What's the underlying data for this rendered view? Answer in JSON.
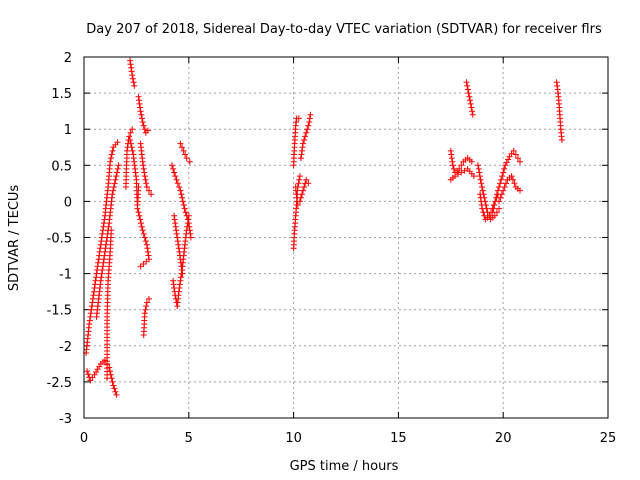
{
  "chart_data": {
    "type": "scatter",
    "title": "Day 207 of 2018, Sidereal Day-to-day VTEC variation (SDTVAR) for receiver flrs",
    "xlabel": "GPS time / hours",
    "ylabel": "SDTVAR / TECUs",
    "xlim": [
      0,
      25
    ],
    "ylim": [
      -3,
      2
    ],
    "xticks": [
      "0",
      "5",
      "10",
      "15",
      "20",
      "25"
    ],
    "yticks": [
      "-3",
      "-2.5",
      "-2",
      "-1.5",
      "-1",
      "-0.5",
      "0",
      "0.5",
      "1",
      "1.5",
      "2"
    ],
    "grid": true,
    "marker": "plus",
    "color": "#ff0000",
    "series": [
      {
        "name": "SDTVAR",
        "segments": [
          [
            [
              0.15,
              -2.35
            ],
            [
              0.3,
              -2.48
            ],
            [
              0.5,
              -2.4
            ],
            [
              0.8,
              -2.25
            ],
            [
              1.0,
              -2.2
            ],
            [
              1.2,
              -2.3
            ],
            [
              1.4,
              -2.55
            ],
            [
              1.55,
              -2.68
            ]
          ],
          [
            [
              0.1,
              -2.1
            ],
            [
              0.25,
              -1.7
            ],
            [
              0.4,
              -1.4
            ],
            [
              0.6,
              -1.0
            ],
            [
              0.8,
              -0.6
            ],
            [
              1.0,
              -0.2
            ],
            [
              1.15,
              0.2
            ],
            [
              1.25,
              0.55
            ],
            [
              1.4,
              0.75
            ],
            [
              1.6,
              0.82
            ]
          ],
          [
            [
              0.6,
              -1.6
            ],
            [
              0.8,
              -1.1
            ],
            [
              1.0,
              -0.7
            ],
            [
              1.2,
              -0.3
            ],
            [
              1.35,
              0.1
            ],
            [
              1.5,
              0.3
            ],
            [
              1.65,
              0.5
            ]
          ],
          [
            [
              1.1,
              -2.45
            ],
            [
              1.1,
              -1.6
            ],
            [
              1.15,
              -1.1
            ],
            [
              1.25,
              -0.7
            ],
            [
              1.3,
              -0.4
            ]
          ],
          [
            [
              2.0,
              0.2
            ],
            [
              2.05,
              0.7
            ],
            [
              2.15,
              0.9
            ],
            [
              2.3,
              1.0
            ]
          ],
          [
            [
              2.2,
              1.95
            ],
            [
              2.3,
              1.75
            ],
            [
              2.4,
              1.6
            ]
          ],
          [
            [
              2.6,
              1.45
            ],
            [
              2.7,
              1.25
            ],
            [
              2.8,
              1.1
            ],
            [
              2.95,
              0.95
            ],
            [
              3.05,
              0.98
            ]
          ],
          [
            [
              2.2,
              0.85
            ],
            [
              2.35,
              0.65
            ],
            [
              2.5,
              0.3
            ],
            [
              2.55,
              -0.1
            ],
            [
              2.6,
              0.2
            ]
          ],
          [
            [
              2.7,
              0.8
            ],
            [
              2.8,
              0.55
            ],
            [
              2.9,
              0.35
            ],
            [
              3.0,
              0.2
            ],
            [
              3.1,
              0.15
            ],
            [
              3.2,
              0.1
            ]
          ],
          [
            [
              2.6,
              -0.15
            ],
            [
              2.8,
              -0.4
            ],
            [
              3.0,
              -0.6
            ],
            [
              3.1,
              -0.8
            ],
            [
              2.7,
              -0.9
            ]
          ],
          [
            [
              2.85,
              -1.85
            ],
            [
              2.9,
              -1.55
            ],
            [
              3.0,
              -1.4
            ],
            [
              3.1,
              -1.35
            ]
          ],
          [
            [
              4.2,
              0.5
            ],
            [
              4.35,
              0.35
            ],
            [
              4.6,
              0.15
            ],
            [
              4.8,
              -0.1
            ],
            [
              5.0,
              -0.3
            ],
            [
              5.1,
              -0.5
            ]
          ],
          [
            [
              4.3,
              -0.2
            ],
            [
              4.4,
              -0.4
            ],
            [
              4.5,
              -0.6
            ],
            [
              4.6,
              -0.8
            ],
            [
              4.7,
              -1.0
            ]
          ],
          [
            [
              4.25,
              -1.1
            ],
            [
              4.35,
              -1.3
            ],
            [
              4.45,
              -1.45
            ],
            [
              4.55,
              -1.2
            ],
            [
              4.7,
              -0.9
            ],
            [
              4.85,
              -0.5
            ],
            [
              5.0,
              -0.2
            ]
          ],
          [
            [
              4.6,
              0.8
            ],
            [
              4.75,
              0.7
            ],
            [
              4.9,
              0.6
            ],
            [
              5.05,
              0.55
            ]
          ],
          [
            [
              10.0,
              0.5
            ],
            [
              10.05,
              0.8
            ],
            [
              10.1,
              1.05
            ],
            [
              10.15,
              1.15
            ],
            [
              10.25,
              1.15
            ]
          ],
          [
            [
              10.0,
              -0.65
            ],
            [
              10.05,
              -0.4
            ],
            [
              10.1,
              -0.2
            ],
            [
              10.15,
              0.0
            ],
            [
              10.2,
              0.2
            ],
            [
              10.3,
              0.35
            ]
          ],
          [
            [
              10.1,
              0.2
            ],
            [
              10.15,
              0.05
            ],
            [
              10.2,
              -0.05
            ],
            [
              10.3,
              0.0
            ],
            [
              10.45,
              0.15
            ],
            [
              10.6,
              0.3
            ],
            [
              10.7,
              0.25
            ]
          ],
          [
            [
              10.35,
              0.6
            ],
            [
              10.45,
              0.8
            ],
            [
              10.6,
              0.95
            ],
            [
              10.75,
              1.1
            ],
            [
              10.8,
              1.2
            ]
          ],
          [
            [
              17.5,
              0.7
            ],
            [
              17.6,
              0.5
            ],
            [
              17.7,
              0.4
            ],
            [
              17.9,
              0.45
            ],
            [
              18.1,
              0.55
            ],
            [
              18.3,
              0.6
            ],
            [
              18.5,
              0.55
            ]
          ],
          [
            [
              17.5,
              0.3
            ],
            [
              17.7,
              0.35
            ],
            [
              18.0,
              0.4
            ],
            [
              18.3,
              0.45
            ],
            [
              18.6,
              0.35
            ]
          ],
          [
            [
              18.25,
              1.65
            ],
            [
              18.35,
              1.5
            ],
            [
              18.45,
              1.35
            ],
            [
              18.55,
              1.2
            ]
          ],
          [
            [
              18.8,
              0.5
            ],
            [
              18.95,
              0.25
            ],
            [
              19.1,
              0.05
            ],
            [
              19.25,
              -0.15
            ],
            [
              19.4,
              -0.25
            ],
            [
              19.6,
              -0.2
            ],
            [
              19.8,
              -0.1
            ]
          ],
          [
            [
              18.9,
              0.1
            ],
            [
              19.0,
              -0.1
            ],
            [
              19.15,
              -0.25
            ],
            [
              19.35,
              -0.2
            ],
            [
              19.55,
              -0.05
            ],
            [
              19.75,
              0.1
            ]
          ],
          [
            [
              19.5,
              -0.15
            ],
            [
              19.7,
              0.1
            ],
            [
              19.9,
              0.3
            ],
            [
              20.1,
              0.5
            ],
            [
              20.3,
              0.62
            ],
            [
              20.5,
              0.7
            ],
            [
              20.7,
              0.6
            ],
            [
              20.8,
              0.55
            ]
          ],
          [
            [
              19.8,
              0.0
            ],
            [
              20.0,
              0.15
            ],
            [
              20.2,
              0.3
            ],
            [
              20.4,
              0.35
            ],
            [
              20.6,
              0.2
            ],
            [
              20.8,
              0.15
            ]
          ],
          [
            [
              22.55,
              1.65
            ],
            [
              22.6,
              1.55
            ],
            [
              22.65,
              1.4
            ],
            [
              22.7,
              1.2
            ],
            [
              22.75,
              1.0
            ],
            [
              22.8,
              0.85
            ]
          ]
        ]
      }
    ]
  }
}
